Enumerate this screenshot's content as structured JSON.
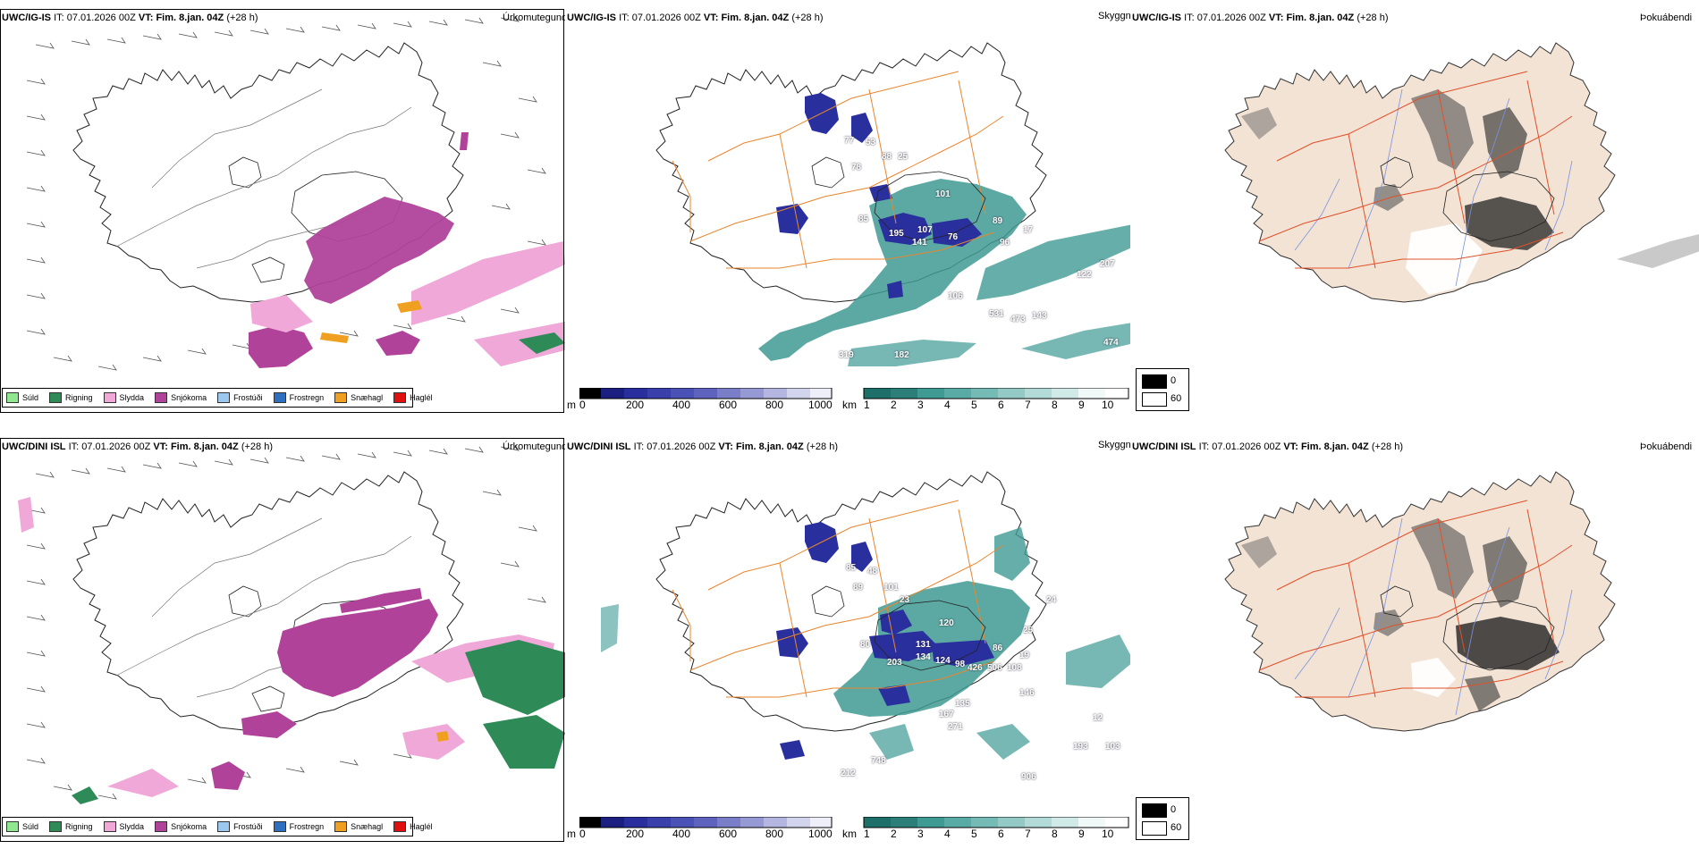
{
  "rows": [
    {
      "model": "UWC/IG-IS",
      "it_label": "IT:",
      "it_value": "07.01.2026 00Z",
      "vt_label": "VT:",
      "vt_value": "Fim. 8.jan. 04Z",
      "lead": "(+28 h)"
    },
    {
      "model": "UWC/DINI ISL",
      "it_label": "IT:",
      "it_value": "07.01.2026 00Z",
      "vt_label": "VT:",
      "vt_value": "Fim. 8.jan. 04Z",
      "lead": "(+28 h)"
    }
  ],
  "panel_titles": {
    "precip": "Úrkomutegund",
    "visibility": "Skyggni",
    "fog": "Þokuábendi"
  },
  "precip_legend": [
    {
      "label": "Súld",
      "color": "#8fe88f"
    },
    {
      "label": "Rigning",
      "color": "#2e8b57"
    },
    {
      "label": "Slydda",
      "color": "#f0a8d8"
    },
    {
      "label": "Snjókoma",
      "color": "#b0429a"
    },
    {
      "label": "Frostúði",
      "color": "#9cc8f0"
    },
    {
      "label": "Frostregn",
      "color": "#2e6fc0"
    },
    {
      "label": "Snæhagl",
      "color": "#f0a020"
    },
    {
      "label": "Haglél",
      "color": "#e01010"
    }
  ],
  "cloudbase_scale": {
    "unit": "m",
    "ticks": [
      "0",
      "200",
      "400",
      "600",
      "800",
      "1000"
    ]
  },
  "visibility_scale": {
    "unit": "km",
    "ticks": [
      "1",
      "2",
      "3",
      "4",
      "5",
      "6",
      "7",
      "8",
      "9",
      "10"
    ]
  },
  "fog_scale": {
    "low": "0",
    "high": "60"
  },
  "vis_labels_top": [
    "77",
    "53",
    "78",
    "88",
    "25",
    "101",
    "85",
    "195",
    "107",
    "141",
    "76",
    "89",
    "96",
    "17",
    "122",
    "207",
    "106",
    "531",
    "473",
    "143",
    "319",
    "182",
    "474"
  ],
  "vis_labels_bottom": [
    "85",
    "48",
    "89",
    "101",
    "23",
    "120",
    "80",
    "203",
    "131",
    "134",
    "124",
    "98",
    "426",
    "506",
    "108",
    "86",
    "19",
    "25",
    "24",
    "146",
    "135",
    "167",
    "271",
    "12",
    "193",
    "103",
    "748",
    "212",
    "906"
  ],
  "colors": {
    "snow": "#b0429a",
    "sleet": "#f0a8d8",
    "rain": "#2e8b57",
    "graupel": "#f0a020",
    "vis_teal": "#3f9a94",
    "cloudbase_blue": "#2a2f9e",
    "roads": "#e8862e",
    "fog_land": "#f2e3d4",
    "fog_roads": "#e0502a",
    "fog_rivers": "#7a92e0"
  }
}
